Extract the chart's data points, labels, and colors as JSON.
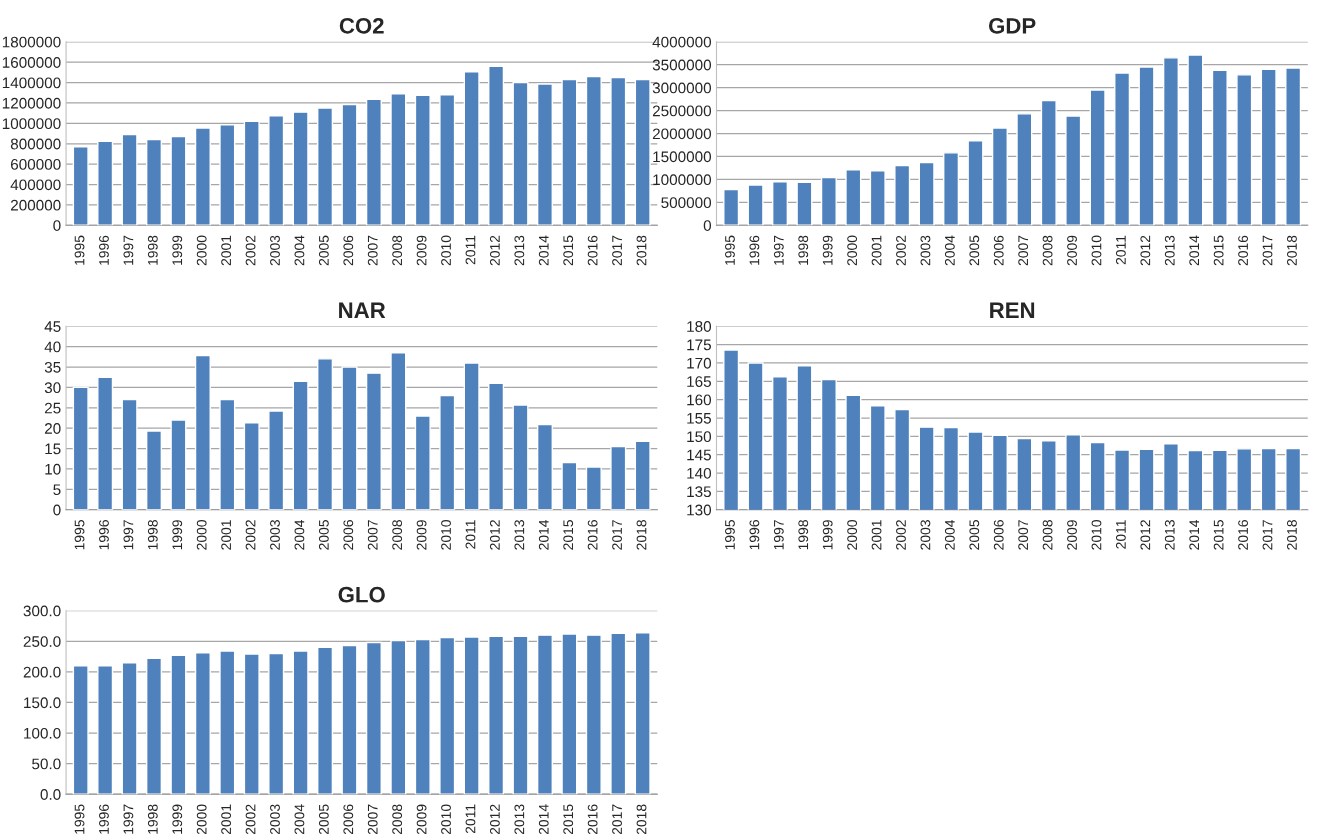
{
  "chart_data": [
    {
      "type": "bar",
      "title": "CO2",
      "categories": [
        "1995",
        "1996",
        "1997",
        "1998",
        "1999",
        "2000",
        "2001",
        "2002",
        "2003",
        "2004",
        "2005",
        "2006",
        "2007",
        "2008",
        "2009",
        "2010",
        "2011",
        "2012",
        "2013",
        "2014",
        "2015",
        "2016",
        "2017",
        "2018"
      ],
      "color": "#4f81bd",
      "grid": "y",
      "ylim": [
        0,
        1800000
      ],
      "yticks": [
        0,
        200000,
        400000,
        600000,
        800000,
        1000000,
        1200000,
        1400000,
        1600000,
        1800000
      ],
      "values": [
        770000,
        825000,
        890000,
        840000,
        870000,
        955000,
        985000,
        1020000,
        1075000,
        1110000,
        1150000,
        1185000,
        1235000,
        1290000,
        1275000,
        1280000,
        1505000,
        1560000,
        1400000,
        1385000,
        1430000,
        1460000,
        1450000,
        1430000
      ]
    },
    {
      "type": "bar",
      "title": "GDP",
      "categories": [
        "1995",
        "1996",
        "1997",
        "1998",
        "1999",
        "2000",
        "2001",
        "2002",
        "2003",
        "2004",
        "2005",
        "2006",
        "2007",
        "2008",
        "2009",
        "2010",
        "2011",
        "2012",
        "2013",
        "2014",
        "2015",
        "2016",
        "2017",
        "2018"
      ],
      "color": "#4f81bd",
      "grid": "y",
      "ylim": [
        0,
        4000000
      ],
      "yticks": [
        0,
        500000,
        1000000,
        1500000,
        2000000,
        2500000,
        3000000,
        3500000,
        4000000
      ],
      "values": [
        780000,
        880000,
        950000,
        940000,
        1040000,
        1210000,
        1190000,
        1300000,
        1370000,
        1580000,
        1840000,
        2120000,
        2430000,
        2720000,
        2380000,
        2950000,
        3320000,
        3450000,
        3650000,
        3710000,
        3380000,
        3280000,
        3400000,
        3430000
      ]
    },
    {
      "type": "bar",
      "title": "NAR",
      "categories": [
        "1995",
        "1996",
        "1997",
        "1998",
        "1999",
        "2000",
        "2001",
        "2002",
        "2003",
        "2004",
        "2005",
        "2006",
        "2007",
        "2008",
        "2009",
        "2010",
        "2011",
        "2012",
        "2013",
        "2014",
        "2015",
        "2016",
        "2017",
        "2018"
      ],
      "color": "#4f81bd",
      "grid": "y",
      "ylim": [
        0,
        45
      ],
      "yticks": [
        0,
        5,
        10,
        15,
        20,
        25,
        30,
        35,
        40,
        45
      ],
      "values": [
        30,
        32.5,
        27,
        19.3,
        22,
        37.8,
        27,
        21.3,
        24.2,
        31.5,
        37,
        35,
        33.5,
        38.5,
        23,
        28,
        36,
        31,
        25.7,
        20.9,
        11.6,
        10.5,
        15.5,
        16.8
      ]
    },
    {
      "type": "bar",
      "title": "REN",
      "categories": [
        "1995",
        "1996",
        "1997",
        "1998",
        "1999",
        "2000",
        "2001",
        "2002",
        "2003",
        "2004",
        "2005",
        "2006",
        "2007",
        "2008",
        "2009",
        "2010",
        "2011",
        "2012",
        "2013",
        "2014",
        "2015",
        "2016",
        "2017",
        "2018"
      ],
      "color": "#4f81bd",
      "grid": "y",
      "ylim": [
        130,
        180
      ],
      "yticks": [
        130,
        135,
        140,
        145,
        150,
        155,
        160,
        165,
        170,
        175,
        180
      ],
      "values": [
        173.5,
        170,
        166.2,
        169.2,
        165.5,
        161.2,
        158.3,
        157.3,
        152.5,
        152.4,
        151.2,
        150.3,
        149.4,
        148.8,
        150.4,
        148.3,
        146.3,
        146.5,
        148,
        146.1,
        146.2,
        146.6,
        146.7,
        146.7
      ]
    },
    {
      "type": "bar",
      "title": "GLO",
      "categories": [
        "1995",
        "1996",
        "1997",
        "1998",
        "1999",
        "2000",
        "2001",
        "2002",
        "2003",
        "2004",
        "2005",
        "2006",
        "2007",
        "2008",
        "2009",
        "2010",
        "2011",
        "2012",
        "2013",
        "2014",
        "2015",
        "2016",
        "2017",
        "2018"
      ],
      "color": "#4f81bd",
      "grid": "y",
      "ylim": [
        0,
        300
      ],
      "yticks": [
        {
          "value": 0,
          "label": "0.0"
        },
        {
          "value": 50,
          "label": "50.0"
        },
        {
          "value": 100,
          "label": "100.0"
        },
        {
          "value": 150,
          "label": "150.0"
        },
        {
          "value": 200,
          "label": "200.0"
        },
        {
          "value": 250,
          "label": "250.0"
        },
        {
          "value": 300,
          "label": "300.0"
        }
      ],
      "values": [
        210,
        210,
        215,
        222,
        227,
        231,
        234,
        229,
        230,
        234,
        240,
        243,
        248,
        251,
        253,
        256,
        257,
        258,
        258,
        260,
        262,
        260,
        263,
        264
      ]
    }
  ]
}
